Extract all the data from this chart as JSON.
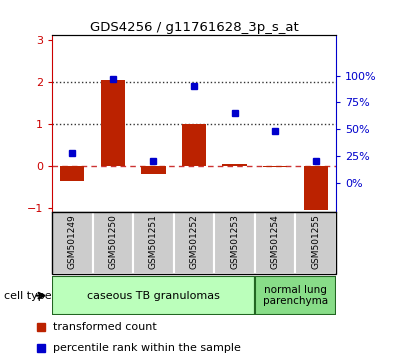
{
  "title": "GDS4256 / g11761628_3p_s_at",
  "samples": [
    "GSM501249",
    "GSM501250",
    "GSM501251",
    "GSM501252",
    "GSM501253",
    "GSM501254",
    "GSM501255"
  ],
  "red_values": [
    -0.35,
    2.05,
    -0.2,
    1.0,
    0.05,
    -0.02,
    -1.05
  ],
  "blue_pct": [
    28,
    97,
    20,
    90,
    65,
    48,
    20
  ],
  "ylim_left": [
    -1.1,
    3.1
  ],
  "ylim_right": [
    -27.5,
    137.5
  ],
  "right_tick_vals": [
    0,
    25,
    50,
    75,
    100
  ],
  "right_tick_labels": [
    "0%",
    "25%",
    "50%",
    "75%",
    "100%"
  ],
  "left_ticks": [
    -1,
    0,
    1,
    2,
    3
  ],
  "bar_color": "#bb2200",
  "dot_color": "#0000cc",
  "group1_label": "caseous TB granulomas",
  "group2_label": "normal lung\nparenchyma",
  "group1_count": 5,
  "group2_count": 2,
  "cell_type_label": "cell type",
  "legend_red": "transformed count",
  "legend_blue": "percentile rank within the sample",
  "group1_color": "#bbffbb",
  "group2_color": "#88dd88",
  "sample_bg_color": "#cccccc",
  "bar_width": 0.6,
  "left_tick_color": "#cc0000",
  "right_tick_color": "#0000cc",
  "hline0_color": "#cc3333",
  "hline_dotted_color": "#333333"
}
